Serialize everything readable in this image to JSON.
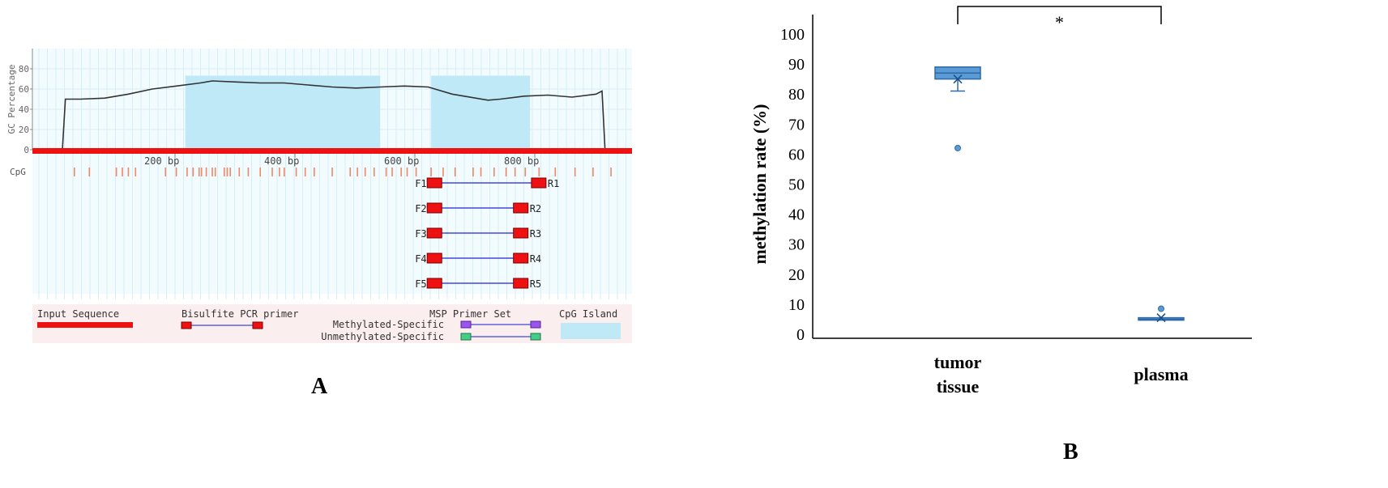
{
  "colors": {
    "background_band": "#fbeeee",
    "plot_background": "#f2fbfd",
    "grid": "#d7eef6",
    "cpg_island": "#bfe9f7",
    "gc_line": "#333333",
    "input_sequence": "#ee1111",
    "primer_box": "#ee1111",
    "primer_link": "#4444dd",
    "msp_methylated": "#9955ee",
    "msp_unmethylated": "#44cc88",
    "cpg_tick": "#ee8866",
    "box_fill": "#5b9bd5",
    "box_edge": "#2e6aa8",
    "axis": "#000000"
  },
  "panel_a": {
    "label": "A",
    "y_axis_label": "GC Percentage",
    "y_ticks": [
      "0",
      "20",
      "40",
      "60",
      "80"
    ],
    "x_ticks": [
      "200 bp",
      "400 bp",
      "600 bp",
      "800 bp"
    ],
    "cpg_label": "CpG",
    "primers": [
      {
        "forward": "F1",
        "reverse": "R1"
      },
      {
        "forward": "F2",
        "reverse": "R2"
      },
      {
        "forward": "F3",
        "reverse": "R3"
      },
      {
        "forward": "F4",
        "reverse": "R4"
      },
      {
        "forward": "F5",
        "reverse": "R5"
      }
    ],
    "legend": {
      "input_sequence": "Input Sequence",
      "bisulfite_primer": "Bisulfite PCR primer",
      "msp_primer_set": "MSP Primer Set",
      "methylated_specific": "Methylated-Specific",
      "unmethylated_specific": "Unmethylated-Specific",
      "cpg_island": "CpG Island"
    }
  },
  "panel_b": {
    "label": "B",
    "significance": "*"
  },
  "chart_data": [
    {
      "type": "line",
      "panel": "A",
      "title": "",
      "xlabel": "",
      "ylabel": "GC Percentage",
      "xlim": [
        0,
        1000
      ],
      "ylim": [
        0,
        100
      ],
      "x_ticks": [
        200,
        400,
        600,
        800
      ],
      "y_ticks": [
        0,
        20,
        40,
        60,
        80
      ],
      "series": [
        {
          "x": [
            50,
            55,
            80,
            120,
            160,
            200,
            240,
            280,
            300,
            340,
            380,
            420,
            460,
            500,
            540,
            580,
            620,
            660,
            700,
            740,
            760,
            780,
            820,
            860,
            900,
            940,
            950,
            955
          ],
          "y": [
            0,
            50,
            50,
            51,
            55,
            60,
            63,
            66,
            68,
            67,
            66,
            66,
            64,
            62,
            61,
            62,
            63,
            62,
            55,
            51,
            49,
            50,
            53,
            54,
            52,
            55,
            58,
            0
          ]
        }
      ],
      "cpg_islands": [
        [
          255,
          580
        ],
        [
          665,
          830
        ]
      ],
      "cpg_sites": [
        70,
        95,
        140,
        150,
        160,
        172,
        222,
        240,
        258,
        268,
        278,
        282,
        290,
        300,
        305,
        320,
        325,
        330,
        345,
        360,
        380,
        400,
        412,
        420,
        440,
        455,
        470,
        500,
        530,
        542,
        555,
        570,
        590,
        600,
        615,
        625,
        640,
        665,
        685,
        705,
        735,
        748,
        770,
        790,
        805,
        822,
        845,
        872,
        905,
        935,
        965
      ],
      "primer_pairs": [
        {
          "name": "F1/R1",
          "start": 680,
          "end": 835
        },
        {
          "name": "F2/R2",
          "start": 680,
          "end": 805
        },
        {
          "name": "F3/R3",
          "start": 680,
          "end": 805
        },
        {
          "name": "F4/R4",
          "start": 680,
          "end": 805
        },
        {
          "name": "F5/R5",
          "start": 680,
          "end": 805
        }
      ]
    },
    {
      "type": "box",
      "panel": "B",
      "title": "",
      "xlabel": "",
      "ylabel": "methylation rate (%)",
      "categories": [
        "tumor tissue",
        "plasma"
      ],
      "ylim": [
        0,
        100
      ],
      "y_ticks": [
        0,
        10,
        20,
        30,
        40,
        50,
        60,
        70,
        80,
        90,
        100
      ],
      "boxes": [
        {
          "category": "tumor tissue",
          "q1": 85,
          "median": 87,
          "q3": 89,
          "whisker_low": 81,
          "whisker_high": 89,
          "mean": 85,
          "outliers": [
            62
          ]
        },
        {
          "category": "plasma",
          "q1": 5,
          "median": 5,
          "q3": 5.5,
          "whisker_low": 5,
          "whisker_high": 5.5,
          "mean": 5.5,
          "outliers": [
            8.5
          ]
        }
      ],
      "significance": {
        "between": [
          "tumor tissue",
          "plasma"
        ],
        "label": "*"
      }
    }
  ]
}
